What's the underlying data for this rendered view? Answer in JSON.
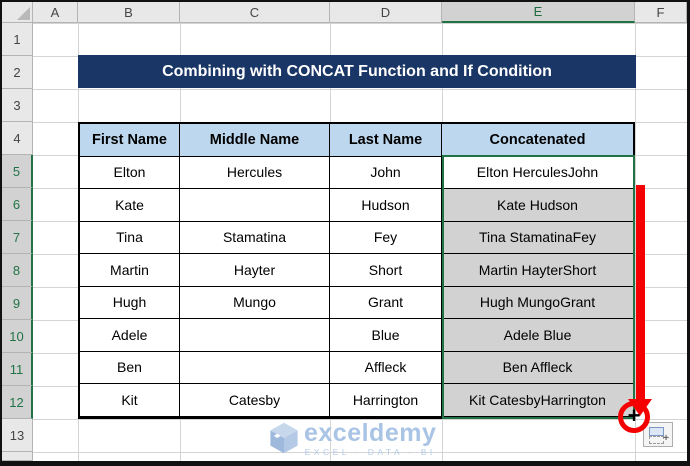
{
  "sheet": {
    "column_headers": [
      "A",
      "B",
      "C",
      "D",
      "E",
      "F"
    ],
    "row_headers": [
      "1",
      "2",
      "3",
      "4",
      "5",
      "6",
      "7",
      "8",
      "9",
      "10",
      "11",
      "12",
      "13"
    ],
    "selected_column": "E",
    "selected_row_start": 5,
    "selected_row_end": 12,
    "selection_range": "E5:E12"
  },
  "banner": {
    "title": "Combining with CONCAT Function and If Condition"
  },
  "table": {
    "headers": [
      "First Name",
      "Middle Name",
      "Last Name",
      "Concatenated"
    ],
    "rows": [
      [
        "Elton",
        "Hercules",
        "John",
        "Elton HerculesJohn"
      ],
      [
        "Kate",
        "",
        "Hudson",
        "Kate Hudson"
      ],
      [
        "Tina",
        "Stamatina",
        "Fey",
        "Tina StamatinaFey"
      ],
      [
        "Martin",
        "Hayter",
        "Short",
        "Martin HayterShort"
      ],
      [
        "Hugh",
        "Mungo",
        "Grant",
        "Hugh MungoGrant"
      ],
      [
        "Adele",
        "",
        "Blue",
        "Adele Blue"
      ],
      [
        "Ben",
        "",
        "Affleck",
        "Ben Affleck"
      ],
      [
        "Kit",
        "Catesby",
        "Harrington",
        "Kit CatesbyHarrington"
      ]
    ]
  },
  "annotations": {
    "fill_handle_cursor": "+"
  },
  "watermark": {
    "brand": "exceldemy",
    "tagline": "EXCEL - DATA - BI"
  },
  "colors": {
    "banner_bg": "#1A3666",
    "table_header_bg": "#BDD7EE",
    "selection_green": "#217346",
    "selection_fill": "#D2D2D2",
    "arrow_red": "#F40000"
  }
}
